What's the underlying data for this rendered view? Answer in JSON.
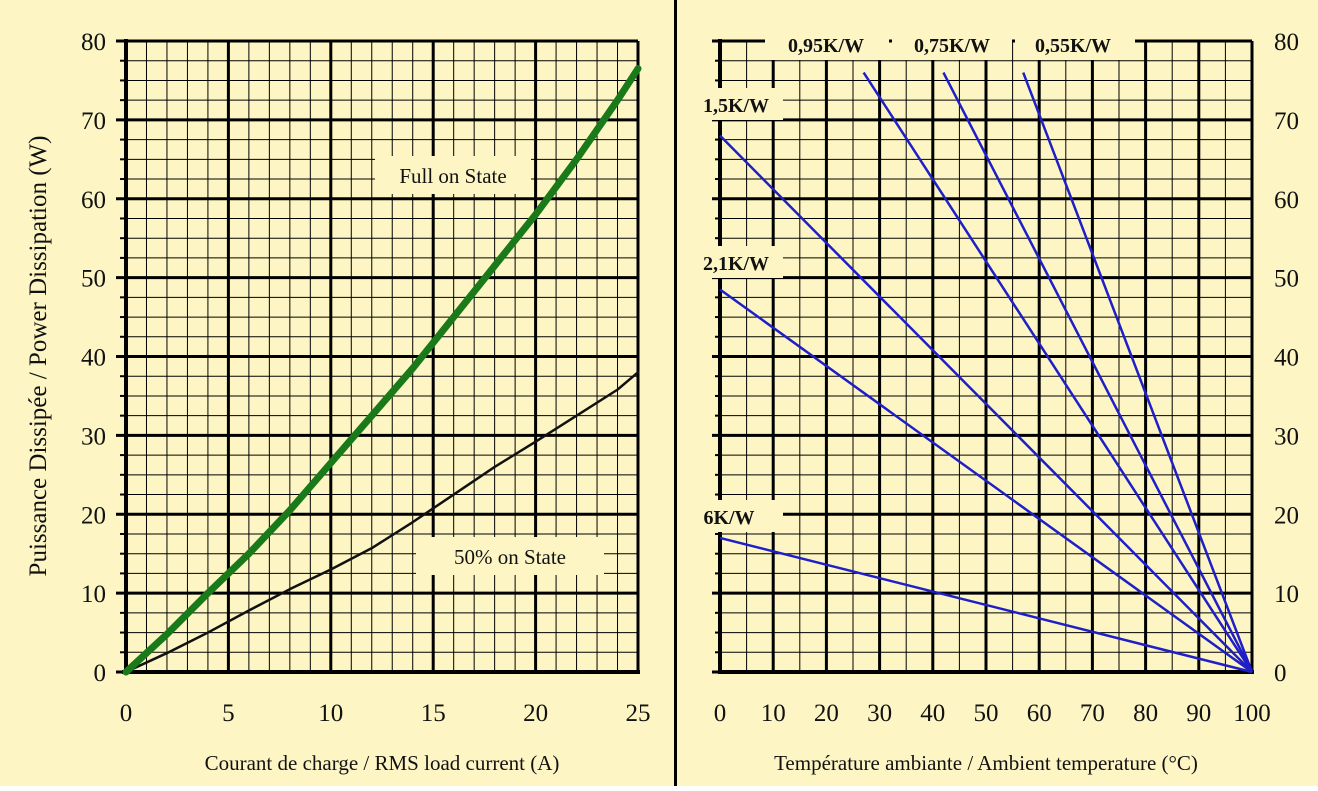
{
  "colors": {
    "background": "#fdf6c4",
    "grid": "#000000",
    "full_on_curve": "#1a7a1a",
    "half_on_curve": "#111111",
    "thermal_lines": "#1f1fc8"
  },
  "chart_data": [
    {
      "type": "line",
      "xlabel": "Courant de charge / RMS load current (A)",
      "ylabel": "Puissance Dissipée / Power Dissipation (W)",
      "xlim": [
        0,
        25
      ],
      "ylim": [
        0,
        80
      ],
      "xticks": [
        "0",
        "5",
        "10",
        "15",
        "20",
        "25"
      ],
      "yticks": [
        "0",
        "10",
        "20",
        "30",
        "40",
        "50",
        "60",
        "70",
        "80"
      ],
      "grid": true,
      "series": [
        {
          "name": "Full on State",
          "x": [
            0,
            2,
            4,
            6,
            8,
            10,
            12,
            14,
            16,
            18,
            20,
            22,
            24,
            25
          ],
          "y": [
            0,
            4.8,
            10,
            15,
            20.5,
            26.5,
            32.5,
            38.5,
            45,
            51.5,
            58,
            65,
            72.5,
            76.5
          ]
        },
        {
          "name": "50% on State",
          "x": [
            0,
            2,
            4,
            6,
            8,
            10,
            12,
            14,
            16,
            18,
            20,
            22,
            24,
            25
          ],
          "y": [
            0,
            2.4,
            5,
            7.8,
            10.5,
            13,
            15.7,
            19,
            22.5,
            26,
            29.2,
            32.5,
            35.8,
            38
          ]
        }
      ],
      "annotations": [
        "Full on State",
        "50% on State"
      ]
    },
    {
      "type": "line",
      "xlabel": "Température ambiante / Ambient temperature (°C)",
      "xlim": [
        0,
        100
      ],
      "ylim": [
        0,
        80
      ],
      "xticks": [
        "0",
        "10",
        "20",
        "30",
        "40",
        "50",
        "60",
        "70",
        "80",
        "90",
        "100"
      ],
      "yticks": [
        "0",
        "10",
        "20",
        "30",
        "40",
        "50",
        "60",
        "70",
        "80"
      ],
      "grid": true,
      "series": [
        {
          "name": "0,55K/W",
          "x": [
            57,
            100
          ],
          "y": [
            76,
            0
          ]
        },
        {
          "name": "0,75K/W",
          "x": [
            42,
            100
          ],
          "y": [
            76,
            0
          ]
        },
        {
          "name": "0,95K/W",
          "x": [
            27,
            100
          ],
          "y": [
            76,
            0
          ]
        },
        {
          "name": "1,5K/W",
          "x": [
            0,
            100
          ],
          "y": [
            68,
            0
          ]
        },
        {
          "name": "2,1K/W",
          "x": [
            0,
            100
          ],
          "y": [
            48.5,
            0
          ]
        },
        {
          "name": "6K/W",
          "x": [
            0,
            100
          ],
          "y": [
            17,
            0
          ]
        }
      ]
    }
  ]
}
